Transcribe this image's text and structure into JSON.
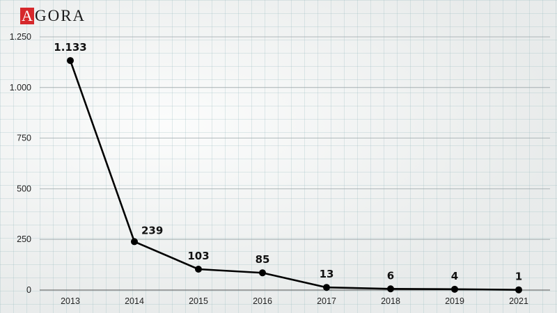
{
  "brand": {
    "mark": "A",
    "rest": "GORA"
  },
  "chart_data": {
    "type": "line",
    "title": "",
    "xlabel": "",
    "ylabel": "",
    "categories": [
      "2013",
      "2014",
      "2015",
      "2016",
      "2017",
      "2018",
      "2019",
      "2021"
    ],
    "series": [
      {
        "values": [
          1133,
          239,
          103,
          85,
          13,
          6,
          4,
          1
        ],
        "labels": [
          "1.133",
          "239",
          "103",
          "85",
          "13",
          "6",
          "4",
          "1"
        ],
        "color": "#000000"
      }
    ],
    "ylim": [
      0,
      1250
    ],
    "yticks": [
      0,
      250,
      500,
      750,
      1000,
      1250
    ],
    "ytick_labels": [
      "0",
      "250",
      "500",
      "750",
      "1.000",
      "1.250"
    ],
    "grid": true,
    "legend": "none"
  }
}
